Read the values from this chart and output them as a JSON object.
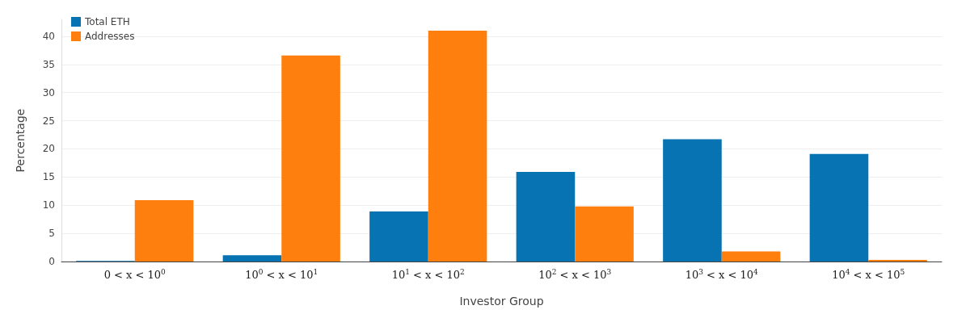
{
  "chart_data": {
    "type": "bar",
    "xlabel": "Investor Group",
    "ylabel": "Percentage",
    "categories": [
      "0 < x < 10$^{0}$",
      "10$^{0}$ < x < 10$^{1}$",
      "10$^{1}$ < x < 10$^{2}$",
      "10$^{2}$ < x < 10$^{3}$",
      "10$^{3}$ < x < 10$^{4}$",
      "10$^{4}$ < x < 10$^{5}$"
    ],
    "series": [
      {
        "name": "Total ETH",
        "color": "#0773b3",
        "values": [
          0.1,
          1.1,
          8.9,
          15.9,
          21.7,
          19.1
        ]
      },
      {
        "name": "Addresses",
        "color": "#ff7f0e",
        "values": [
          10.9,
          36.6,
          41.0,
          9.8,
          1.8,
          0.3
        ]
      }
    ],
    "ylim": [
      0,
      43
    ],
    "yticks": [
      0,
      5,
      10,
      15,
      20,
      25,
      30,
      35,
      40
    ],
    "grid": "y",
    "legend": "top left"
  }
}
